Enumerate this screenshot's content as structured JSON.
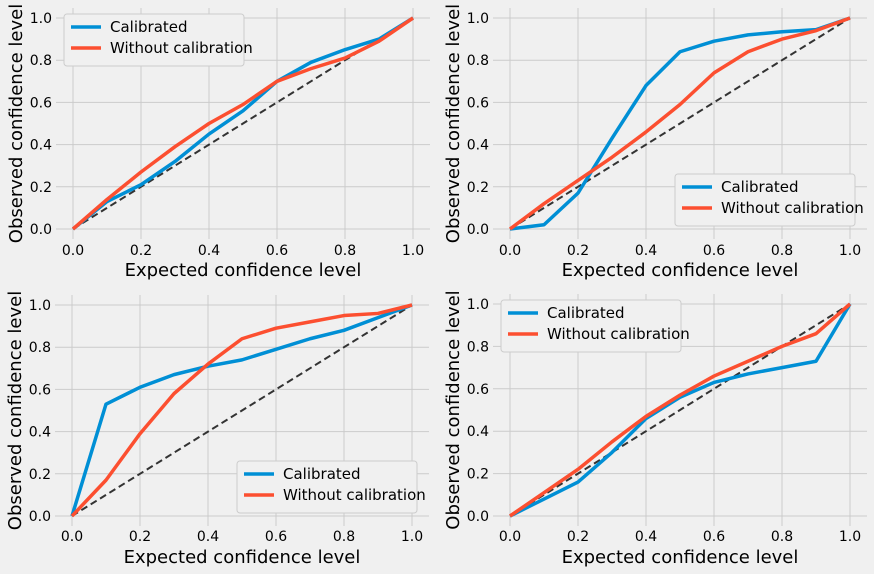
{
  "colors": {
    "background": "#f0f0f0",
    "calibrated": "#008fd5",
    "without_calibration": "#fc4f30",
    "diagonal": "#333333",
    "grid": "#cbcbcb"
  },
  "chart_data": [
    {
      "type": "line",
      "xlabel": "Expected confidence level",
      "ylabel": "Observed confidence level",
      "xlim": [
        0,
        1
      ],
      "ylim": [
        0,
        1
      ],
      "xticks": [
        "0.0",
        "0.2",
        "0.4",
        "0.6",
        "0.8",
        "1.0"
      ],
      "yticks": [
        "0.0",
        "0.2",
        "0.4",
        "0.6",
        "0.8",
        "1.0"
      ],
      "grid": true,
      "legend_position": "upper-left",
      "x": [
        0,
        0.1,
        0.2,
        0.3,
        0.4,
        0.5,
        0.6,
        0.7,
        0.8,
        0.9,
        1.0
      ],
      "series": [
        {
          "name": "Calibrated",
          "values": [
            0,
            0.13,
            0.21,
            0.32,
            0.45,
            0.56,
            0.7,
            0.79,
            0.85,
            0.9,
            1.0
          ]
        },
        {
          "name": "Without calibration",
          "values": [
            0,
            0.14,
            0.27,
            0.39,
            0.5,
            0.59,
            0.7,
            0.76,
            0.81,
            0.89,
            1.0
          ]
        },
        {
          "name": "diagonal",
          "values": [
            0,
            0.1,
            0.2,
            0.3,
            0.4,
            0.5,
            0.6,
            0.7,
            0.8,
            0.9,
            1.0
          ]
        }
      ]
    },
    {
      "type": "line",
      "xlabel": "Expected confidence level",
      "ylabel": "Observed confidence level",
      "xlim": [
        0,
        1
      ],
      "ylim": [
        0,
        1
      ],
      "xticks": [
        "0.0",
        "0.2",
        "0.4",
        "0.6",
        "0.8",
        "1.0"
      ],
      "yticks": [
        "0.0",
        "0.2",
        "0.4",
        "0.6",
        "0.8",
        "1.0"
      ],
      "grid": true,
      "legend_position": "lower-right",
      "x": [
        0,
        0.1,
        0.2,
        0.3,
        0.4,
        0.5,
        0.6,
        0.7,
        0.8,
        0.9,
        1.0
      ],
      "series": [
        {
          "name": "Calibrated",
          "values": [
            0,
            0.02,
            0.17,
            0.43,
            0.68,
            0.84,
            0.89,
            0.92,
            0.935,
            0.945,
            1.0
          ]
        },
        {
          "name": "Without calibration",
          "values": [
            0,
            0.12,
            0.23,
            0.34,
            0.46,
            0.59,
            0.74,
            0.84,
            0.9,
            0.94,
            1.0
          ]
        },
        {
          "name": "diagonal",
          "values": [
            0,
            0.1,
            0.2,
            0.3,
            0.4,
            0.5,
            0.6,
            0.7,
            0.8,
            0.9,
            1.0
          ]
        }
      ]
    },
    {
      "type": "line",
      "xlabel": "Expected confidence level",
      "ylabel": "Observed confidence level",
      "xlim": [
        0,
        1
      ],
      "ylim": [
        0,
        1
      ],
      "xticks": [
        "0.0",
        "0.2",
        "0.4",
        "0.6",
        "0.8",
        "1.0"
      ],
      "yticks": [
        "0.0",
        "0.2",
        "0.4",
        "0.6",
        "0.8",
        "1.0"
      ],
      "grid": true,
      "legend_position": "lower-right",
      "x": [
        0,
        0.1,
        0.2,
        0.3,
        0.4,
        0.5,
        0.6,
        0.7,
        0.8,
        0.9,
        1.0
      ],
      "series": [
        {
          "name": "Calibrated",
          "values": [
            0,
            0.53,
            0.61,
            0.67,
            0.71,
            0.74,
            0.79,
            0.84,
            0.88,
            0.94,
            1.0
          ]
        },
        {
          "name": "Without calibration",
          "values": [
            0,
            0.17,
            0.39,
            0.58,
            0.72,
            0.84,
            0.89,
            0.92,
            0.95,
            0.96,
            1.0
          ]
        },
        {
          "name": "diagonal",
          "values": [
            0,
            0.1,
            0.2,
            0.3,
            0.4,
            0.5,
            0.6,
            0.7,
            0.8,
            0.9,
            1.0
          ]
        }
      ]
    },
    {
      "type": "line",
      "xlabel": "Expected confidence level",
      "ylabel": "Observed confidence level",
      "xlim": [
        0,
        1
      ],
      "ylim": [
        0,
        1
      ],
      "xticks": [
        "0.0",
        "0.2",
        "0.4",
        "0.6",
        "0.8",
        "1.0"
      ],
      "yticks": [
        "0.0",
        "0.2",
        "0.4",
        "0.6",
        "0.8",
        "1.0"
      ],
      "grid": true,
      "legend_position": "upper-left",
      "x": [
        0,
        0.1,
        0.2,
        0.3,
        0.4,
        0.5,
        0.6,
        0.7,
        0.8,
        0.9,
        1.0
      ],
      "series": [
        {
          "name": "Calibrated",
          "values": [
            0,
            0.08,
            0.16,
            0.3,
            0.46,
            0.56,
            0.63,
            0.67,
            0.7,
            0.73,
            1.0
          ]
        },
        {
          "name": "Without calibration",
          "values": [
            0,
            0.11,
            0.22,
            0.35,
            0.47,
            0.57,
            0.66,
            0.73,
            0.8,
            0.86,
            1.0
          ]
        },
        {
          "name": "diagonal",
          "values": [
            0,
            0.1,
            0.2,
            0.3,
            0.4,
            0.5,
            0.6,
            0.7,
            0.8,
            0.9,
            1.0
          ]
        }
      ]
    }
  ]
}
